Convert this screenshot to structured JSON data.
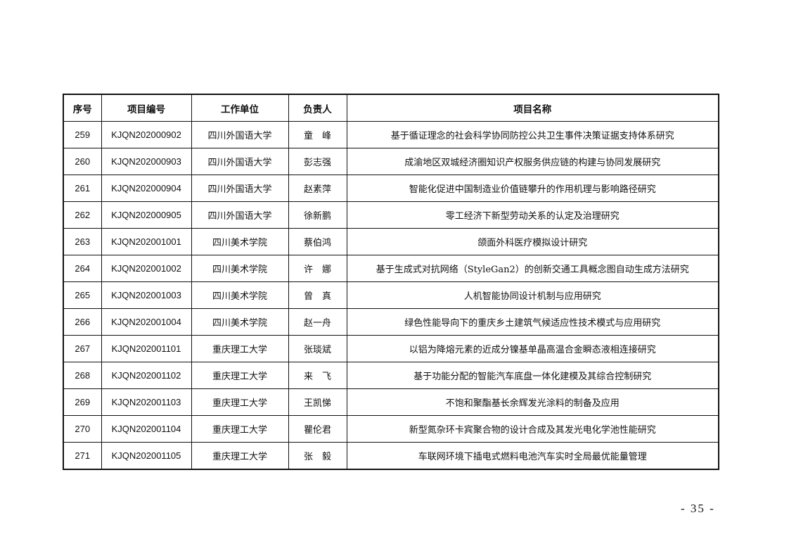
{
  "table": {
    "headers": [
      "序号",
      "项目编号",
      "工作单位",
      "负责人",
      "项目名称"
    ],
    "rows": [
      [
        "259",
        "KJQN202000902",
        "四川外国语大学",
        "童　峰",
        "基于循证理念的社会科学协同防控公共卫生事件决策证据支持体系研究"
      ],
      [
        "260",
        "KJQN202000903",
        "四川外国语大学",
        "彭志强",
        "成渝地区双城经济圈知识产权服务供应链的构建与协同发展研究"
      ],
      [
        "261",
        "KJQN202000904",
        "四川外国语大学",
        "赵素萍",
        "智能化促进中国制造业价值链攀升的作用机理与影响路径研究"
      ],
      [
        "262",
        "KJQN202000905",
        "四川外国语大学",
        "徐新鹏",
        "零工经济下新型劳动关系的认定及治理研究"
      ],
      [
        "263",
        "KJQN202001001",
        "四川美术学院",
        "蔡伯鸿",
        "颌面外科医疗模拟设计研究"
      ],
      [
        "264",
        "KJQN202001002",
        "四川美术学院",
        "许　娜",
        "基于生成式对抗网络（StyleGan2）的创新交通工具概念图自动生成方法研究"
      ],
      [
        "265",
        "KJQN202001003",
        "四川美术学院",
        "曾　真",
        "人机智能协同设计机制与应用研究"
      ],
      [
        "266",
        "KJQN202001004",
        "四川美术学院",
        "赵一舟",
        "绿色性能导向下的重庆乡土建筑气候适应性技术模式与应用研究"
      ],
      [
        "267",
        "KJQN202001101",
        "重庆理工大学",
        "张琰斌",
        "以铝为降熔元素的近成分镍基单晶高温合金瞬态液相连接研究"
      ],
      [
        "268",
        "KJQN202001102",
        "重庆理工大学",
        "来　飞",
        "基于功能分配的智能汽车底盘一体化建模及其综合控制研究"
      ],
      [
        "269",
        "KJQN202001103",
        "重庆理工大学",
        "王凯悌",
        "不饱和聚酯基长余辉发光涂料的制备及应用"
      ],
      [
        "270",
        "KJQN202001104",
        "重庆理工大学",
        "瞿伦君",
        "新型氮杂环卡宾聚合物的设计合成及其发光电化学池性能研究"
      ],
      [
        "271",
        "KJQN202001105",
        "重庆理工大学",
        "张　毅",
        "车联网环境下插电式燃料电池汽车实时全局最优能量管理"
      ]
    ]
  },
  "page_number": "- 35 -"
}
